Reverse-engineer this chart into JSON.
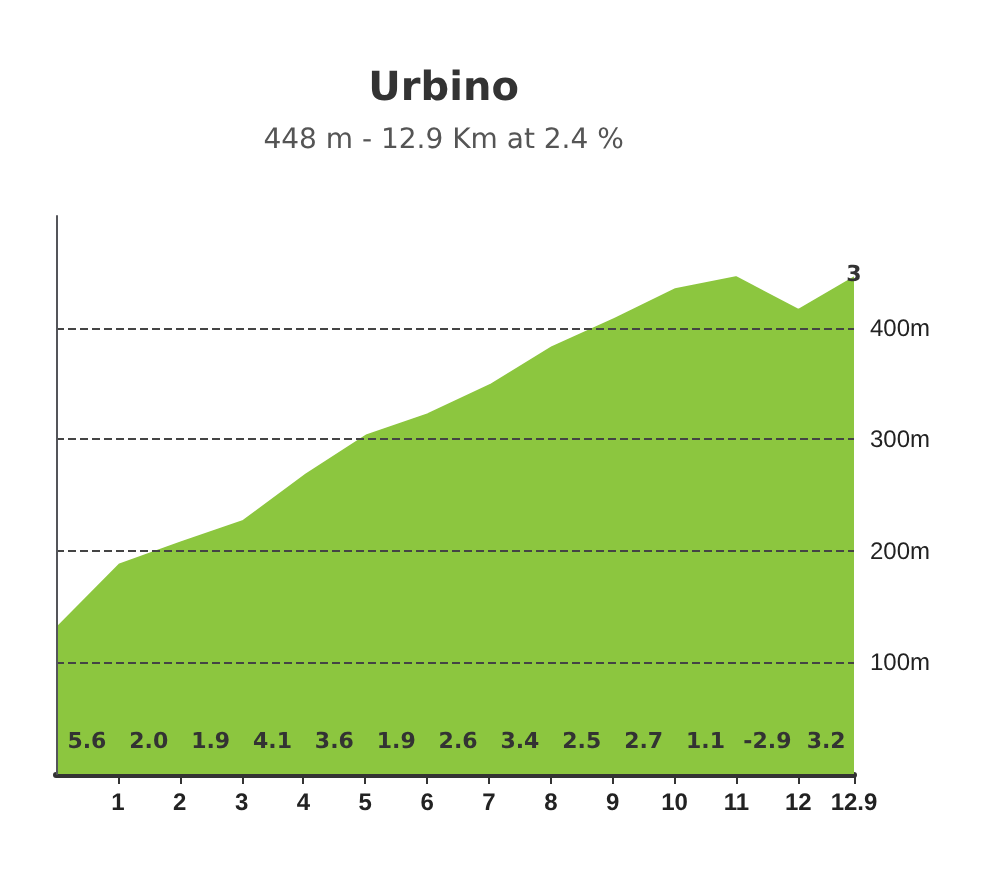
{
  "chart_data": {
    "type": "area",
    "title": "Urbino",
    "subtitle": "448 m - 12.9 Km at 2.4 %",
    "x": [
      0,
      1,
      2,
      3,
      4,
      5,
      6,
      7,
      8,
      9,
      10,
      11,
      12,
      12.9
    ],
    "series": [
      {
        "color": "#8cc63f",
        "values": [
          134,
          190,
          210,
          229,
          270,
          306,
          325,
          351,
          385,
          410,
          437,
          448,
          419,
          448
        ]
      }
    ],
    "xlim": [
      0,
      12.9
    ],
    "xticks": [
      1,
      2,
      3,
      4,
      5,
      6,
      7,
      8,
      9,
      10,
      11,
      12,
      12.9
    ],
    "ylim": [
      0,
      500
    ],
    "yticks": [
      {
        "value": 100,
        "label": "100m"
      },
      {
        "value": 200,
        "label": "200m"
      },
      {
        "value": 300,
        "label": "300m"
      },
      {
        "value": 400,
        "label": "400m"
      }
    ],
    "grid": "y",
    "line_style": "solid",
    "marker": "none",
    "annotations": [
      "5.6",
      "2.0",
      "1.9",
      "4.1",
      "3.6",
      "1.9",
      "2.6",
      "3.4",
      "2.5",
      "2.7",
      "1.1",
      "-2.9",
      "3.2",
      {
        "text": "3",
        "x": 12.9,
        "y": 448
      }
    ]
  }
}
